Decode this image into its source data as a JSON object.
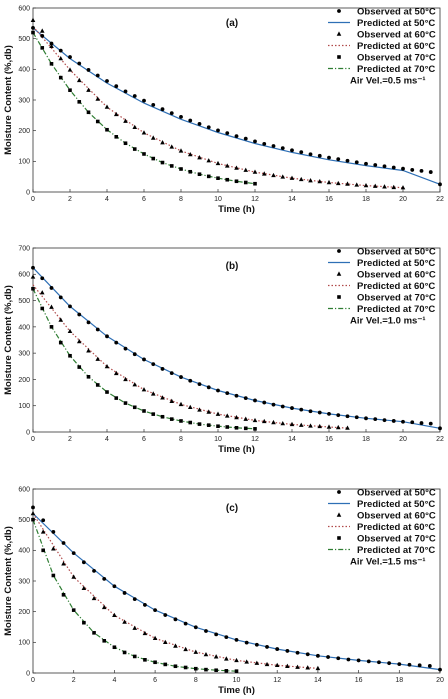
{
  "chart_data": [
    {
      "type": "scatter",
      "panel_label": "(a)",
      "xlabel": "Time (h)",
      "ylabel": "Moisture Content (%,db)",
      "xlim": [
        0,
        22
      ],
      "ylim": [
        0,
        600
      ],
      "x_ticks": [
        0,
        2,
        4,
        6,
        8,
        10,
        12,
        14,
        16,
        18,
        20,
        22
      ],
      "y_ticks": [
        0,
        100,
        200,
        300,
        400,
        500,
        600
      ],
      "annotation": "Air Vel.=0.5 ms⁻¹",
      "legend_position": "top-right",
      "series": [
        {
          "name": "Observed at 50°C",
          "kind": "observed",
          "marker": "circle",
          "color": "#000000",
          "x": [
            0,
            0.5,
            1,
            1.5,
            2,
            2.5,
            3,
            3.5,
            4,
            4.5,
            5,
            5.5,
            6,
            6.5,
            7,
            7.5,
            8,
            8.5,
            9,
            9.5,
            10,
            10.5,
            11,
            11.5,
            12,
            12.5,
            13,
            13.5,
            14,
            14.5,
            15,
            15.5,
            16,
            16.5,
            17,
            17.5,
            18,
            18.5,
            19,
            19.5,
            20,
            20.5,
            21,
            21.5,
            22
          ],
          "y": [
            535,
            509,
            484,
            461,
            440,
            419,
            398,
            380,
            362,
            345,
            328,
            313,
            298,
            284,
            270,
            257,
            245,
            233,
            222,
            211,
            201,
            192,
            182,
            174,
            165,
            157,
            150,
            143,
            136,
            130,
            123,
            118,
            112,
            107,
            102,
            97,
            92,
            88,
            84,
            80,
            76,
            72,
            69,
            65,
            25
          ]
        },
        {
          "name": "Predicted at 50°C",
          "kind": "predicted",
          "line": "solid",
          "color": "#2e6fb5",
          "x": [
            0,
            2,
            4,
            6,
            8,
            10,
            12,
            14,
            16,
            18,
            20,
            22
          ],
          "y": [
            535,
            435,
            355,
            290,
            237,
            194,
            158,
            129,
            105,
            86,
            70,
            25
          ]
        },
        {
          "name": "Observed at 60°C",
          "kind": "observed",
          "marker": "triangle",
          "color": "#000000",
          "x": [
            0,
            0.5,
            1,
            1.5,
            2,
            2.5,
            3,
            3.5,
            4,
            4.5,
            5,
            5.5,
            6,
            6.5,
            7,
            7.5,
            8,
            8.5,
            9,
            9.5,
            10,
            10.5,
            11,
            11.5,
            12,
            12.5,
            13,
            13.5,
            14,
            14.5,
            15,
            15.5,
            16,
            16.5,
            17,
            17.5,
            18,
            18.5,
            19,
            19.5,
            20
          ],
          "y": [
            560,
            525,
            475,
            435,
            398,
            364,
            332,
            303,
            277,
            253,
            231,
            211,
            193,
            176,
            161,
            147,
            134,
            122,
            112,
            102,
            93,
            85,
            78,
            71,
            65,
            59,
            54,
            49,
            45,
            41,
            37,
            34,
            31,
            28,
            26,
            23,
            21,
            19,
            17,
            15,
            14
          ]
        },
        {
          "name": "Predicted at 60°C",
          "kind": "predicted",
          "line": "dotted",
          "color": "#b04a4a",
          "x": [
            0,
            2,
            4,
            6,
            8,
            10,
            12,
            14,
            16,
            18,
            20
          ],
          "y": [
            540,
            398,
            277,
            193,
            134,
            93,
            65,
            45,
            31,
            21,
            14
          ]
        },
        {
          "name": "Observed at 70°C",
          "kind": "observed",
          "marker": "square",
          "color": "#000000",
          "x": [
            0,
            0.5,
            1,
            1.5,
            2,
            2.5,
            3,
            3.5,
            4,
            4.5,
            5,
            5.5,
            6,
            6.5,
            7,
            7.5,
            8,
            8.5,
            9,
            9.5,
            10,
            10.5,
            11,
            11.5,
            12
          ],
          "y": [
            520,
            470,
            418,
            373,
            332,
            294,
            260,
            230,
            203,
            180,
            159,
            140,
            124,
            109,
            96,
            85,
            75,
            66,
            58,
            51,
            45,
            40,
            35,
            31,
            27
          ]
        },
        {
          "name": "Predicted at 70°C",
          "kind": "predicted",
          "line": "dashdot",
          "color": "#2e7d32",
          "x": [
            0,
            1,
            2,
            3,
            4,
            5,
            6,
            7,
            8,
            9,
            10,
            11,
            12
          ],
          "y": [
            520,
            418,
            332,
            260,
            203,
            159,
            124,
            96,
            75,
            58,
            45,
            35,
            27
          ]
        }
      ]
    },
    {
      "type": "scatter",
      "panel_label": "(b)",
      "xlabel": "Time (h)",
      "ylabel": "Moisture Content (%,db)",
      "xlim": [
        0,
        22
      ],
      "ylim": [
        0,
        700
      ],
      "x_ticks": [
        0,
        2,
        4,
        6,
        8,
        10,
        12,
        14,
        16,
        18,
        20,
        22
      ],
      "y_ticks": [
        0,
        100,
        200,
        300,
        400,
        500,
        600,
        700
      ],
      "annotation": "Air Vel.=1.0 ms⁻¹",
      "legend_position": "top-right",
      "series": [
        {
          "name": "Observed at 50°C",
          "kind": "observed",
          "marker": "circle",
          "color": "#000000",
          "x": [
            0,
            0.5,
            1,
            1.5,
            2,
            2.5,
            3,
            3.5,
            4,
            4.5,
            5,
            5.5,
            6,
            6.5,
            7,
            7.5,
            8,
            8.5,
            9,
            9.5,
            10,
            10.5,
            11,
            11.5,
            12,
            12.5,
            13,
            13.5,
            14,
            14.5,
            15,
            15.5,
            16,
            16.5,
            17,
            17.5,
            18,
            18.5,
            19,
            19.5,
            20,
            20.5,
            21,
            21.5,
            22
          ],
          "y": [
            625,
            585,
            548,
            512,
            478,
            447,
            417,
            390,
            364,
            340,
            317,
            296,
            276,
            258,
            240,
            224,
            209,
            195,
            182,
            170,
            158,
            148,
            138,
            129,
            120,
            112,
            104,
            97,
            91,
            85,
            79,
            74,
            69,
            64,
            60,
            56,
            52,
            49,
            45,
            42,
            39,
            37,
            34,
            32,
            14
          ]
        },
        {
          "name": "Predicted at 50°C",
          "kind": "predicted",
          "line": "solid",
          "color": "#2e6fb5",
          "x": [
            0,
            2,
            4,
            6,
            8,
            10,
            12,
            14,
            16,
            18,
            20,
            22
          ],
          "y": [
            625,
            478,
            364,
            276,
            209,
            158,
            120,
            91,
            69,
            52,
            39,
            14
          ]
        },
        {
          "name": "Observed at 60°C",
          "kind": "observed",
          "marker": "triangle",
          "color": "#000000",
          "x": [
            0,
            0.5,
            1,
            1.5,
            2,
            2.5,
            3,
            3.5,
            4,
            4.5,
            5,
            5.5,
            6,
            6.5,
            7,
            7.5,
            8,
            8.5,
            9,
            9.5,
            10,
            10.5,
            11,
            11.5,
            12,
            12.5,
            13,
            13.5,
            14,
            14.5,
            15,
            15.5,
            16,
            16.5,
            17
          ],
          "y": [
            590,
            530,
            475,
            426,
            383,
            344,
            309,
            277,
            249,
            223,
            200,
            180,
            161,
            145,
            130,
            117,
            105,
            94,
            84,
            76,
            68,
            61,
            55,
            49,
            44,
            40,
            36,
            32,
            29,
            26,
            23,
            21,
            19,
            17,
            15
          ]
        },
        {
          "name": "Predicted at 60°C",
          "kind": "predicted",
          "line": "dotted",
          "color": "#b04a4a",
          "x": [
            0,
            2,
            4,
            6,
            8,
            10,
            12,
            14,
            16,
            17
          ],
          "y": [
            560,
            383,
            249,
            161,
            105,
            68,
            44,
            29,
            19,
            15
          ]
        },
        {
          "name": "Observed at 70°C",
          "kind": "observed",
          "marker": "square",
          "color": "#000000",
          "x": [
            0,
            0.5,
            1,
            1.5,
            2,
            2.5,
            3,
            3.5,
            4,
            4.5,
            5,
            5.5,
            6,
            6.5,
            7,
            7.5,
            8,
            8.5,
            9,
            9.5,
            10,
            10.5,
            11,
            11.5,
            12
          ],
          "y": [
            545,
            470,
            400,
            340,
            290,
            247,
            210,
            179,
            152,
            129,
            110,
            94,
            80,
            68,
            58,
            49,
            42,
            36,
            30,
            26,
            22,
            19,
            16,
            14,
            12
          ]
        },
        {
          "name": "Predicted at 70°C",
          "kind": "predicted",
          "line": "dashdot",
          "color": "#2e7d32",
          "x": [
            0,
            1,
            2,
            3,
            4,
            5,
            6,
            7,
            8,
            9,
            10,
            11,
            12
          ],
          "y": [
            545,
            400,
            290,
            210,
            152,
            110,
            80,
            58,
            42,
            30,
            22,
            16,
            12
          ]
        }
      ]
    },
    {
      "type": "scatter",
      "panel_label": "(c)",
      "xlabel": "Time (h)",
      "ylabel": "Moisture Content (%,db)",
      "xlim": [
        0,
        20
      ],
      "ylim": [
        0,
        600
      ],
      "x_ticks": [
        0,
        2,
        4,
        6,
        8,
        10,
        12,
        14,
        16,
        18,
        20
      ],
      "y_ticks": [
        0,
        100,
        200,
        300,
        400,
        500,
        600
      ],
      "annotation": "Air Vel.=1.5 ms⁻¹",
      "legend_position": "top-right",
      "series": [
        {
          "name": "Observed at 50°C",
          "kind": "observed",
          "marker": "circle",
          "color": "#000000",
          "x": [
            0,
            0.5,
            1,
            1.5,
            2,
            2.5,
            3,
            3.5,
            4,
            4.5,
            5,
            5.5,
            6,
            6.5,
            7,
            7.5,
            8,
            8.5,
            9,
            9.5,
            10,
            10.5,
            11,
            11.5,
            12,
            12.5,
            13,
            13.5,
            14,
            14.5,
            15,
            15.5,
            16,
            16.5,
            17,
            17.5,
            18,
            18.5,
            19,
            19.5,
            20
          ],
          "y": [
            540,
            498,
            460,
            424,
            391,
            361,
            333,
            307,
            283,
            261,
            241,
            222,
            205,
            189,
            175,
            161,
            149,
            137,
            126,
            117,
            108,
            99,
            92,
            85,
            78,
            72,
            66,
            61,
            56,
            52,
            48,
            44,
            41,
            38,
            35,
            32,
            29,
            27,
            25,
            23,
            11
          ]
        },
        {
          "name": "Predicted at 50°C",
          "kind": "predicted",
          "line": "solid",
          "color": "#2e6fb5",
          "x": [
            0,
            2,
            4,
            6,
            8,
            10,
            12,
            14,
            16,
            18,
            20
          ],
          "y": [
            520,
            391,
            283,
            205,
            149,
            108,
            78,
            56,
            41,
            29,
            11
          ]
        },
        {
          "name": "Observed at 60°C",
          "kind": "observed",
          "marker": "triangle",
          "color": "#000000",
          "x": [
            0,
            0.5,
            1,
            1.5,
            2,
            2.5,
            3,
            3.5,
            4,
            4.5,
            5,
            5.5,
            6,
            6.5,
            7,
            7.5,
            8,
            8.5,
            9,
            9.5,
            10,
            10.5,
            11,
            11.5,
            12,
            12.5,
            13,
            13.5,
            14
          ],
          "y": [
            520,
            460,
            405,
            356,
            313,
            276,
            243,
            214,
            188,
            166,
            146,
            129,
            113,
            100,
            88,
            77,
            68,
            60,
            53,
            46,
            41,
            36,
            32,
            28,
            25,
            22,
            19,
            17,
            15
          ]
        },
        {
          "name": "Predicted at 60°C",
          "kind": "predicted",
          "line": "dotted",
          "color": "#b04a4a",
          "x": [
            0,
            2,
            4,
            6,
            8,
            10,
            12,
            14
          ],
          "y": [
            520,
            313,
            188,
            113,
            68,
            41,
            25,
            15
          ]
        },
        {
          "name": "Observed at 70°C",
          "kind": "observed",
          "marker": "square",
          "color": "#000000",
          "x": [
            0,
            0.5,
            1,
            1.5,
            2,
            2.5,
            3,
            3.5,
            4,
            4.5,
            5,
            5.5,
            6,
            6.5,
            7,
            7.5,
            8,
            8.5,
            9,
            9.5,
            10
          ],
          "y": [
            500,
            400,
            318,
            255,
            205,
            164,
            131,
            105,
            84,
            67,
            54,
            43,
            35,
            28,
            22,
            18,
            14,
            11,
            9,
            7,
            6
          ]
        },
        {
          "name": "Predicted at 70°C",
          "kind": "predicted",
          "line": "dashdot",
          "color": "#2e7d32",
          "x": [
            0,
            1,
            2,
            3,
            4,
            5,
            6,
            7,
            8,
            9,
            10
          ],
          "y": [
            500,
            318,
            205,
            131,
            84,
            54,
            35,
            22,
            14,
            9,
            6
          ]
        }
      ]
    }
  ]
}
